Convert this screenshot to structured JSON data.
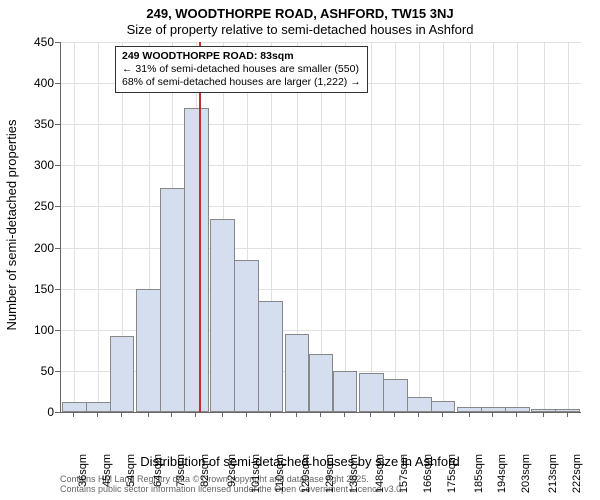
{
  "chart": {
    "type": "histogram",
    "title_main": "249, WOODTHORPE ROAD, ASHFORD, TW15 3NJ",
    "title_sub": "Size of property relative to semi-detached houses in Ashford",
    "ylabel": "Number of semi-detached properties",
    "xlabel": "Distribution of semi-detached houses by size in Ashford",
    "background_color": "#ffffff",
    "grid_color": "#e0e0e0",
    "axis_color": "#666666",
    "bar_fill": "#d5deef",
    "bar_border": "#888888",
    "marker_color": "#c03030",
    "title_fontsize": 13,
    "label_fontsize": 13,
    "tick_fontsize": 12,
    "xtick_fontsize": 11,
    "yticks": [
      0,
      50,
      100,
      150,
      200,
      250,
      300,
      350,
      400,
      450
    ],
    "ymax": 450,
    "xticks": [
      "36sqm",
      "45sqm",
      "54sqm",
      "64sqm",
      "73sqm",
      "82sqm",
      "92sqm",
      "101sqm",
      "110sqm",
      "120sqm",
      "129sqm",
      "138sqm",
      "148sqm",
      "157sqm",
      "166sqm",
      "175sqm",
      "185sqm",
      "194sqm",
      "203sqm",
      "213sqm",
      "222sqm"
    ],
    "categories": [
      "36",
      "45",
      "54",
      "64",
      "73",
      "82",
      "92",
      "101",
      "110",
      "120",
      "129",
      "138",
      "148",
      "157",
      "166",
      "175",
      "185",
      "194",
      "203",
      "213",
      "222"
    ],
    "values": [
      12,
      12,
      93,
      150,
      273,
      370,
      235,
      185,
      135,
      95,
      70,
      50,
      48,
      40,
      18,
      13,
      6,
      6,
      6,
      4,
      4
    ],
    "marker_size_sqm": 83,
    "x_range_start": 31,
    "x_range_end": 227,
    "bin_width_sqm": 9.33,
    "annotation": {
      "line1": "249 WOODTHORPE ROAD: 83sqm",
      "line2": "← 31% of semi-detached houses are smaller (550)",
      "line3": "68% of semi-detached houses are larger (1,222) →"
    },
    "footer_line1": "Contains HM Land Registry data © Crown copyright and database right 2025.",
    "footer_line2": "Contains public sector information licensed under the Open Government Licence v3.0."
  }
}
